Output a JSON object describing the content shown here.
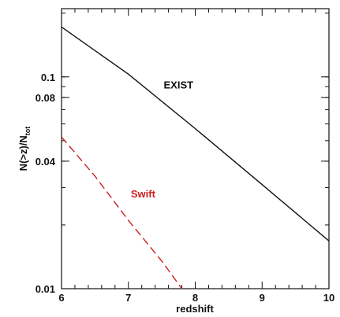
{
  "chart_data": {
    "type": "line",
    "xlabel": "redshift",
    "ylabel": "N(>z)/N",
    "ylabel_subscript": "tot",
    "xlim": [
      6,
      10
    ],
    "ylim": [
      0.01,
      0.21
    ],
    "yscale": "log",
    "x_ticks": [
      6,
      7,
      8,
      9,
      10
    ],
    "x_tick_labels": [
      "6",
      "7",
      "8",
      "9",
      "10"
    ],
    "y_ticks": [
      0.01,
      0.04,
      0.08,
      0.1
    ],
    "y_tick_labels": [
      "0.01",
      "0.04",
      "0.08",
      "0.1"
    ],
    "grid": false,
    "series": [
      {
        "name": "EXIST",
        "color": "#111111",
        "dash": "solid",
        "x": [
          6.0,
          7.0,
          8.0,
          9.0,
          10.0
        ],
        "y": [
          0.172,
          0.103,
          0.057,
          0.031,
          0.0168
        ]
      },
      {
        "name": "Swift",
        "color": "#cc1f1f",
        "dash": "dashed",
        "x": [
          6.0,
          6.5,
          7.0,
          7.5,
          7.8
        ],
        "y": [
          0.052,
          0.034,
          0.021,
          0.0135,
          0.01
        ]
      }
    ]
  }
}
